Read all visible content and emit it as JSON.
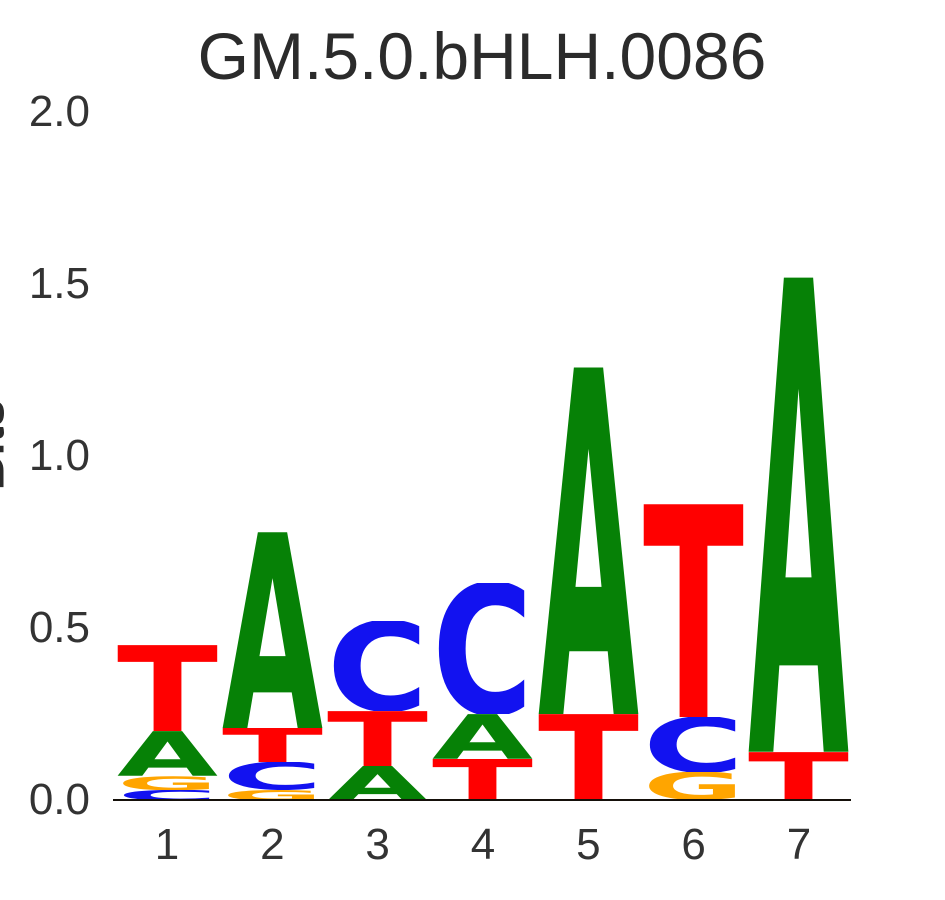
{
  "title": "GM.5.0.bHLH.0086",
  "y_axis": {
    "label": "Bits",
    "tick_labels": [
      "2.0",
      "1.5",
      "1.0",
      "0.5",
      "0.0"
    ]
  },
  "x_axis": {
    "tick_labels": [
      "1",
      "2",
      "3",
      "4",
      "5",
      "6",
      "7"
    ]
  },
  "base_colors": {
    "A": "#068106",
    "C": "#1212f0",
    "G": "#ffa500",
    "T": "#ff0000"
  },
  "style_colors": {
    "title_text": "#2b2b2b",
    "tick_text": "#333333",
    "axis_line": "#15100a"
  },
  "chart_data": {
    "type": "sequence_logo",
    "title": "GM.5.0.bHLH.0086",
    "ylabel": "Bits",
    "ylim": [
      0,
      2
    ],
    "yticks": [
      2.0,
      1.5,
      1.0,
      0.5,
      0.0
    ],
    "xticks": [
      1,
      2,
      3,
      4,
      5,
      6,
      7
    ],
    "legend": "none",
    "positions": [
      {
        "position": 1,
        "stack": [
          {
            "base": "T",
            "bits": 0.25
          },
          {
            "base": "A",
            "bits": 0.13
          },
          {
            "base": "G",
            "bits": 0.04
          },
          {
            "base": "C",
            "bits": 0.03
          }
        ]
      },
      {
        "position": 2,
        "stack": [
          {
            "base": "A",
            "bits": 0.57
          },
          {
            "base": "T",
            "bits": 0.1
          },
          {
            "base": "C",
            "bits": 0.08
          },
          {
            "base": "G",
            "bits": 0.03
          }
        ]
      },
      {
        "position": 3,
        "stack": [
          {
            "base": "C",
            "bits": 0.26
          },
          {
            "base": "T",
            "bits": 0.16
          },
          {
            "base": "A",
            "bits": 0.1
          }
        ]
      },
      {
        "position": 4,
        "stack": [
          {
            "base": "C",
            "bits": 0.38
          },
          {
            "base": "A",
            "bits": 0.13
          },
          {
            "base": "T",
            "bits": 0.12
          }
        ]
      },
      {
        "position": 5,
        "stack": [
          {
            "base": "A",
            "bits": 1.01
          },
          {
            "base": "T",
            "bits": 0.25
          }
        ]
      },
      {
        "position": 6,
        "stack": [
          {
            "base": "T",
            "bits": 0.62
          },
          {
            "base": "C",
            "bits": 0.16
          },
          {
            "base": "G",
            "bits": 0.08
          }
        ]
      },
      {
        "position": 7,
        "stack": [
          {
            "base": "A",
            "bits": 1.38
          },
          {
            "base": "T",
            "bits": 0.14
          }
        ]
      }
    ]
  }
}
